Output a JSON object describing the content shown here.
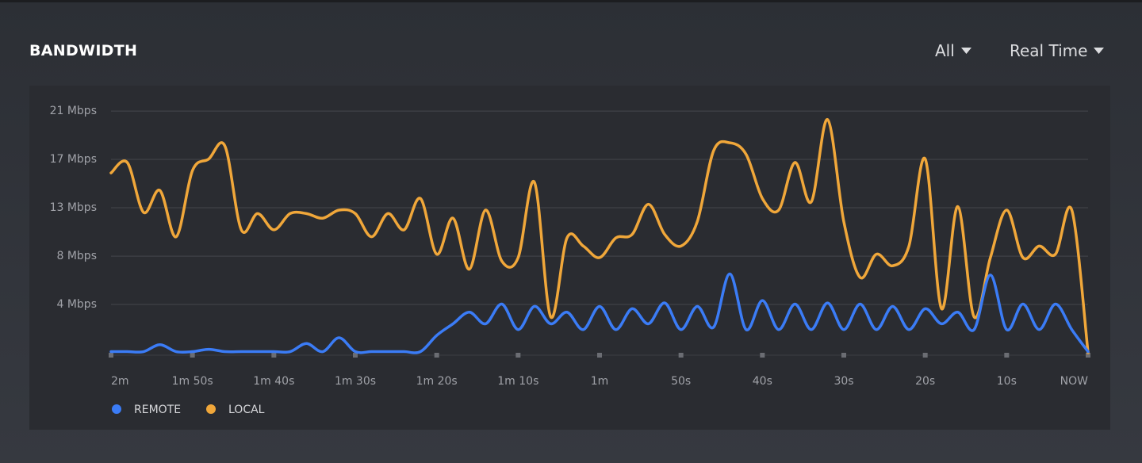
{
  "header": {
    "title": "BANDWIDTH",
    "filters": [
      "All",
      "Real Time"
    ]
  },
  "chart_data": {
    "type": "line",
    "xlim": [
      -120,
      0
    ],
    "xticks": [
      {
        "value": -120,
        "label": "2m"
      },
      {
        "value": -110,
        "label": "1m 50s"
      },
      {
        "value": -100,
        "label": "1m 40s"
      },
      {
        "value": -90,
        "label": "1m 30s"
      },
      {
        "value": -80,
        "label": "1m 20s"
      },
      {
        "value": -70,
        "label": "1m 10s"
      },
      {
        "value": -60,
        "label": "1m"
      },
      {
        "value": -50,
        "label": "50s"
      },
      {
        "value": -40,
        "label": "40s"
      },
      {
        "value": -30,
        "label": "30s"
      },
      {
        "value": -20,
        "label": "20s"
      },
      {
        "value": -10,
        "label": "10s"
      },
      {
        "value": 0,
        "label": "NOW"
      }
    ],
    "ylim": [
      0,
      22
    ],
    "yticks": [
      {
        "value": 4.17,
        "label": "4 Mbps"
      },
      {
        "value": 8.33,
        "label": "8 Mbps"
      },
      {
        "value": 12.5,
        "label": "13 Mbps"
      },
      {
        "value": 16.67,
        "label": "17 Mbps"
      },
      {
        "value": 20.83,
        "label": "21 Mbps"
      }
    ],
    "grid": true,
    "legend": "bottom-left",
    "x": [
      -120,
      -118,
      -116,
      -114,
      -112,
      -110,
      -108,
      -106,
      -104,
      -102,
      -100,
      -98,
      -96,
      -94,
      -92,
      -90,
      -88,
      -86,
      -84,
      -82,
      -80,
      -78,
      -76,
      -74,
      -72,
      -70,
      -68,
      -66,
      -64,
      -62,
      -60,
      -58,
      -56,
      -54,
      -52,
      -50,
      -48,
      -46,
      -44,
      -42,
      -40,
      -38,
      -36,
      -34,
      -32,
      -30,
      -28,
      -26,
      -24,
      -22,
      -20,
      -18,
      -16,
      -14,
      -12,
      -10,
      -8,
      -6,
      -4,
      -2,
      0
    ],
    "series": [
      {
        "name": "REMOTE",
        "color": "#3b7cf6",
        "values": [
          0.1,
          0.1,
          0.1,
          0.7,
          0.1,
          0.1,
          0.3,
          0.1,
          0.1,
          0.1,
          0.1,
          0.1,
          0.8,
          0.1,
          1.3,
          0.1,
          0.1,
          0.1,
          0.1,
          0.1,
          1.5,
          2.5,
          3.5,
          2.5,
          4.2,
          2.0,
          4.0,
          2.5,
          3.5,
          2.0,
          4.0,
          2.0,
          3.8,
          2.5,
          4.3,
          2.0,
          4.0,
          2.2,
          6.8,
          2.0,
          4.5,
          2.0,
          4.2,
          2.0,
          4.3,
          2.0,
          4.2,
          2.0,
          4.0,
          2.0,
          3.8,
          2.5,
          3.5,
          2.0,
          6.7,
          2.0,
          4.2,
          2.0,
          4.2,
          2.0,
          0.1
        ]
      },
      {
        "name": "LOCAL",
        "color": "#f0a73a",
        "values": [
          15.5,
          16.4,
          12.1,
          14.0,
          10.0,
          15.7,
          16.7,
          17.8,
          10.6,
          12.0,
          10.6,
          12.0,
          12.0,
          11.6,
          12.3,
          12.0,
          10.0,
          12.0,
          10.6,
          13.3,
          8.5,
          11.6,
          7.2,
          12.3,
          7.9,
          8.2,
          14.7,
          3.1,
          9.9,
          9.2,
          8.2,
          9.9,
          10.2,
          12.8,
          10.2,
          9.2,
          11.3,
          17.4,
          18.1,
          17.1,
          13.3,
          12.3,
          16.4,
          13.0,
          20.1,
          11.3,
          6.5,
          8.5,
          7.5,
          9.2,
          16.7,
          3.8,
          12.6,
          3.1,
          8.2,
          12.3,
          8.2,
          9.2,
          8.5,
          12.3,
          0
        ]
      }
    ]
  }
}
